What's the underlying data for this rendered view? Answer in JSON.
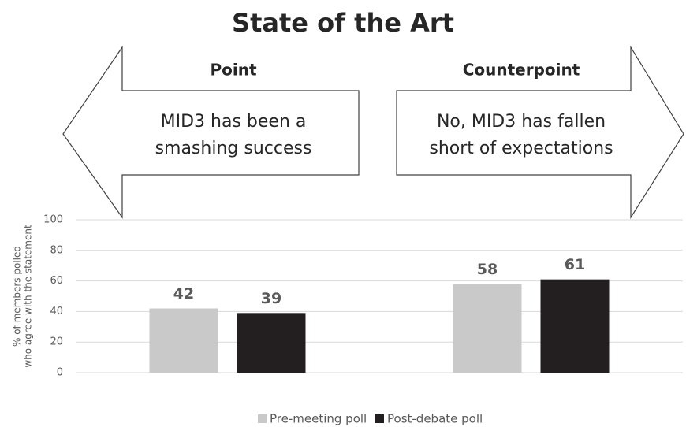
{
  "chart_data": {
    "type": "bar",
    "title": "State of the Art",
    "annotations": [
      {
        "heading": "Point",
        "lines": [
          "MID3 has been a",
          "smashing success"
        ]
      },
      {
        "heading": "Counterpoint",
        "lines": [
          "No, MID3 has fallen",
          "short of expectations"
        ]
      }
    ],
    "y_label": [
      "% of members polled",
      "who agree with the statement"
    ],
    "categories": [
      null,
      null
    ],
    "series": [
      {
        "name": "Pre-meeting poll",
        "color": "#c9c9c9",
        "values": [
          42,
          58
        ]
      },
      {
        "name": "Post-debate poll",
        "color": "#231f20",
        "values": [
          39,
          61
        ]
      }
    ],
    "ylim": [
      0,
      100
    ],
    "yticks": [
      0,
      20,
      40,
      60,
      80,
      100
    ],
    "grid": true,
    "legend": "bottom"
  }
}
